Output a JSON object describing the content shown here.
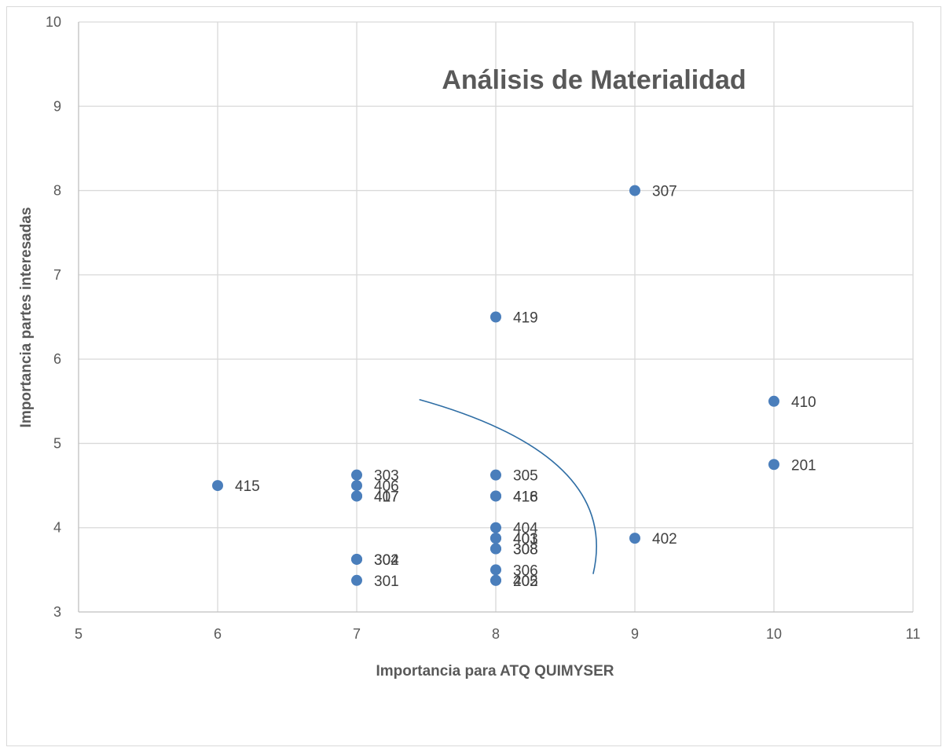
{
  "chart_data": {
    "type": "scatter",
    "title": "Análisis de Materialidad",
    "xlabel": "Importancia para ATQ QUIMYSER",
    "ylabel": "Importancia partes interesadas",
    "xlim": [
      5,
      11
    ],
    "ylim": [
      3,
      10
    ],
    "x_ticks": [
      "5",
      "6",
      "7",
      "8",
      "9",
      "10",
      "11"
    ],
    "y_ticks": [
      "3",
      "4",
      "5",
      "6",
      "7",
      "8",
      "9",
      "10"
    ],
    "grid": true,
    "legend": "none",
    "marker_color": "#4a7ebb",
    "points": [
      {
        "label": "307",
        "x": 9,
        "y": 8.0
      },
      {
        "label": "419",
        "x": 8,
        "y": 6.5
      },
      {
        "label": "410",
        "x": 10,
        "y": 5.5
      },
      {
        "label": "201",
        "x": 10,
        "y": 4.75
      },
      {
        "label": "415",
        "x": 6,
        "y": 4.5
      },
      {
        "label": "303",
        "x": 7,
        "y": 4.625
      },
      {
        "label": "406",
        "x": 7,
        "y": 4.5
      },
      {
        "label": "407",
        "x": 7,
        "y": 4.375
      },
      {
        "label": "417",
        "x": 7,
        "y": 4.375
      },
      {
        "label": "304",
        "x": 7,
        "y": 3.625
      },
      {
        "label": "302",
        "x": 7,
        "y": 3.625
      },
      {
        "label": "301",
        "x": 7,
        "y": 3.375
      },
      {
        "label": "305",
        "x": 8,
        "y": 4.625
      },
      {
        "label": "416",
        "x": 8,
        "y": 4.375
      },
      {
        "label": "418",
        "x": 8,
        "y": 4.375
      },
      {
        "label": "404",
        "x": 8,
        "y": 4.0
      },
      {
        "label": "401",
        "x": 8,
        "y": 3.875
      },
      {
        "label": "403",
        "x": 8,
        "y": 3.875
      },
      {
        "label": "308",
        "x": 8,
        "y": 3.75
      },
      {
        "label": "308",
        "x": 8,
        "y": 3.75
      },
      {
        "label": "306",
        "x": 8,
        "y": 3.5
      },
      {
        "label": "405",
        "x": 8,
        "y": 3.375
      },
      {
        "label": "202",
        "x": 8,
        "y": 3.375
      },
      {
        "label": "402",
        "x": 9,
        "y": 3.875
      }
    ],
    "curve": [
      {
        "x": 7.45,
        "y": 5.52
      },
      {
        "x": 8.9,
        "y": 4.85
      },
      {
        "x": 8.7,
        "y": 3.45
      }
    ]
  }
}
